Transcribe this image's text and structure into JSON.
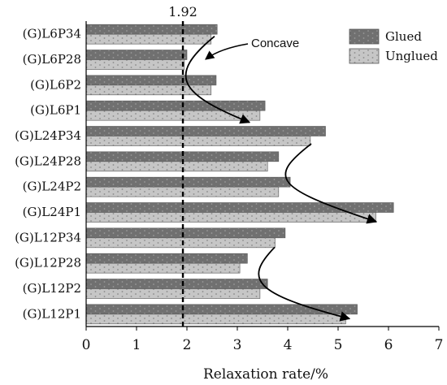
{
  "chart_data": {
    "type": "bar",
    "orientation": "horizontal",
    "categories": [
      "(G)L6P34",
      "(G)L6P28",
      "(G)L6P2",
      "(G)L6P1",
      "(G)L24P34",
      "(G)L24P28",
      "(G)L24P2",
      "(G)L24P1",
      "(G)L12P34",
      "(G)L12P28",
      "(G)L12P2",
      "(G)L12P1"
    ],
    "series": [
      {
        "name": "Glued",
        "values": [
          2.6,
          2.0,
          2.58,
          3.55,
          4.75,
          3.82,
          4.05,
          6.1,
          3.95,
          3.2,
          3.6,
          5.38
        ],
        "color": "#707070",
        "pattern": "dots-dark"
      },
      {
        "name": "Unglued",
        "values": [
          2.48,
          1.95,
          2.48,
          3.45,
          4.45,
          3.6,
          3.82,
          5.75,
          3.75,
          3.05,
          3.45,
          5.15
        ],
        "color": "#c4c4c4",
        "pattern": "dots-light"
      }
    ],
    "xlabel": "Relaxation rate/%",
    "ylabel": "",
    "xlim": [
      0,
      7
    ],
    "xticks": [
      "0",
      "1",
      "2",
      "3",
      "4",
      "5",
      "6",
      "7"
    ],
    "reference_line": {
      "value": 1.92,
      "label": "1.92",
      "style": "dashed"
    },
    "annotation": {
      "text": "Concave"
    },
    "legend": {
      "placement": "top-right"
    },
    "grid": false
  }
}
